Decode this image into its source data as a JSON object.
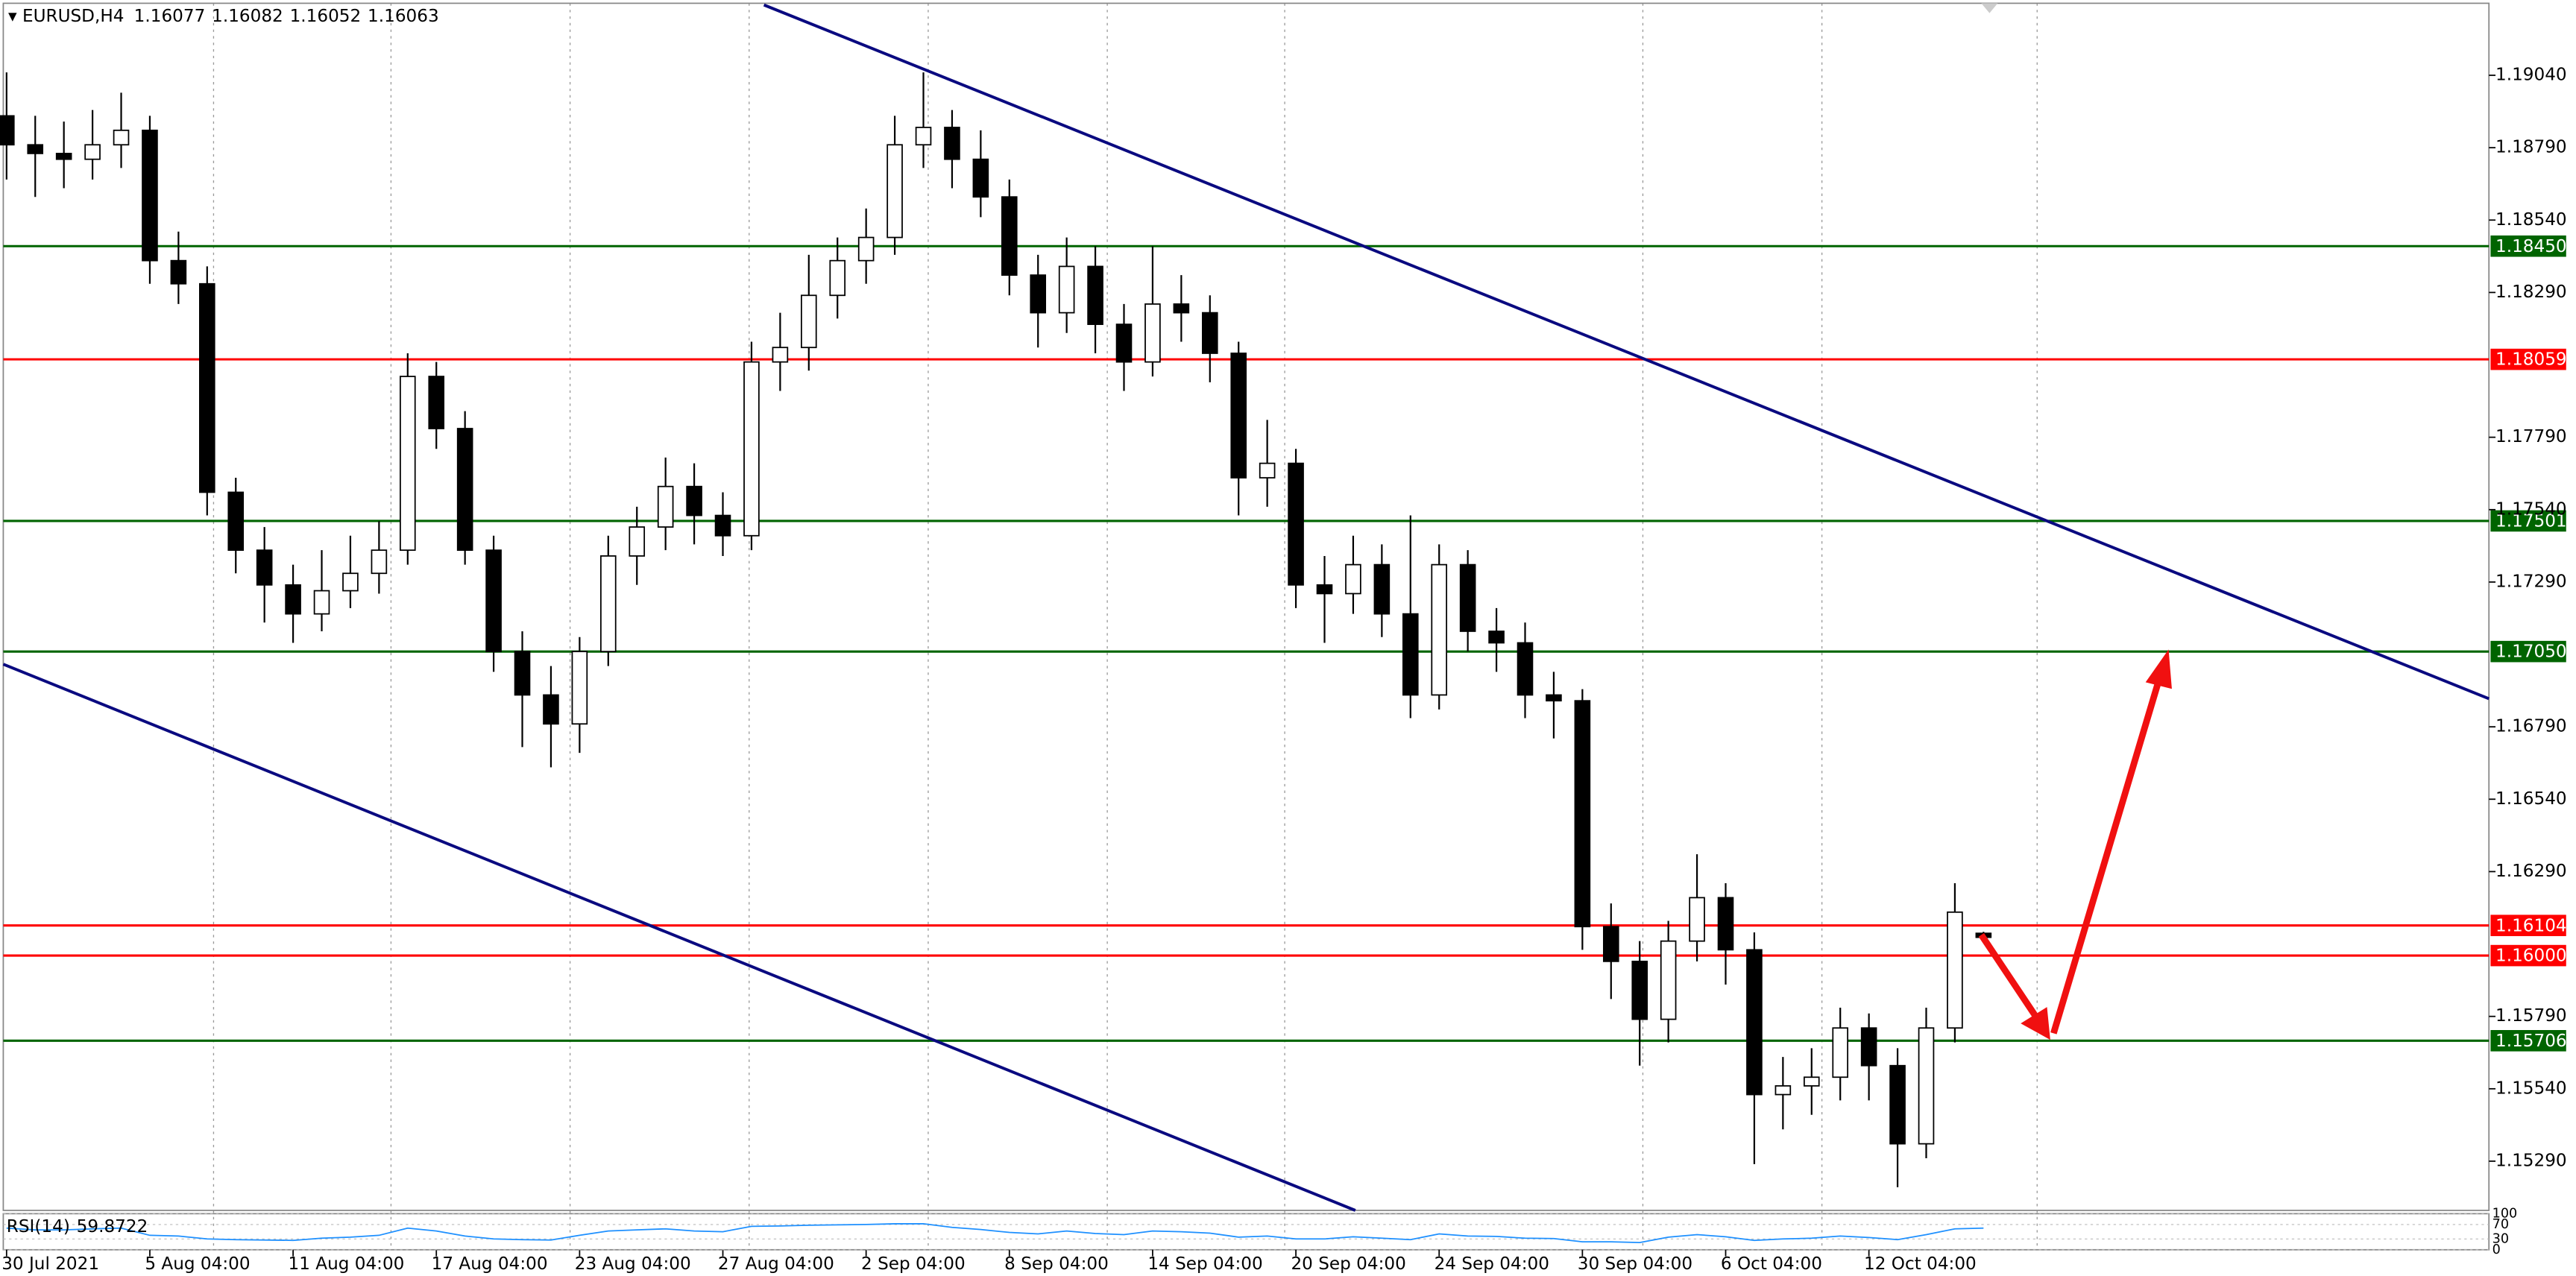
{
  "chart_data": {
    "type": "candlestick",
    "symbol": "EURUSD,H4",
    "categories": [
      "30 Jul 2021",
      null,
      null,
      null,
      null,
      "5 Aug 04:00",
      null,
      null,
      null,
      null,
      "11 Aug 04:00",
      null,
      null,
      null,
      null,
      "17 Aug 04:00",
      null,
      null,
      null,
      null,
      "23 Aug 04:00",
      null,
      null,
      null,
      null,
      "27 Aug 04:00",
      null,
      null,
      null,
      null,
      "2 Sep 04:00",
      null,
      null,
      null,
      null,
      "8 Sep 04:00",
      null,
      null,
      null,
      null,
      "14 Sep 04:00",
      null,
      null,
      null,
      null,
      "20 Sep 04:00",
      null,
      null,
      null,
      null,
      "24 Sep 04:00",
      null,
      null,
      null,
      null,
      "30 Sep 04:00",
      null,
      null,
      null,
      null,
      "6 Oct 04:00",
      null,
      null,
      null,
      null,
      "12 Oct 04:00",
      null,
      null,
      null,
      null
    ],
    "open": [
      1.189,
      1.188,
      1.1877,
      1.1875,
      1.188,
      1.1885,
      1.184,
      1.1832,
      1.176,
      1.174,
      1.1728,
      1.1718,
      1.1726,
      1.1732,
      1.174,
      1.18,
      1.1782,
      1.174,
      1.1705,
      1.169,
      1.168,
      1.1705,
      1.1738,
      1.1748,
      1.1762,
      1.1752,
      1.1745,
      1.1805,
      1.181,
      1.1828,
      1.184,
      1.1848,
      1.188,
      1.1886,
      1.1875,
      1.1862,
      1.1835,
      1.1822,
      1.1838,
      1.1818,
      1.1805,
      1.1825,
      1.1822,
      1.1808,
      1.1765,
      1.177,
      1.1728,
      1.1725,
      1.1735,
      1.1718,
      1.169,
      1.1735,
      1.1712,
      1.1708,
      1.169,
      1.1688,
      1.161,
      1.1598,
      1.1578,
      1.1605,
      1.162,
      1.1602,
      1.1552,
      1.1555,
      1.1558,
      1.1575,
      1.1562,
      1.1535,
      1.1575,
      1.16077
    ],
    "high": [
      1.1905,
      1.189,
      1.1888,
      1.1892,
      1.1898,
      1.189,
      1.185,
      1.1838,
      1.1765,
      1.1748,
      1.1735,
      1.174,
      1.1745,
      1.175,
      1.1808,
      1.1805,
      1.1788,
      1.1745,
      1.1712,
      1.17,
      1.171,
      1.1745,
      1.1755,
      1.1772,
      1.177,
      1.176,
      1.1812,
      1.1822,
      1.1842,
      1.1848,
      1.1858,
      1.189,
      1.1905,
      1.1892,
      1.1885,
      1.1868,
      1.1842,
      1.1848,
      1.1845,
      1.1825,
      1.1845,
      1.1835,
      1.1828,
      1.1812,
      1.1785,
      1.1775,
      1.1738,
      1.1745,
      1.1742,
      1.1752,
      1.1742,
      1.174,
      1.172,
      1.1715,
      1.1698,
      1.1692,
      1.1618,
      1.1605,
      1.1612,
      1.1635,
      1.1625,
      1.1608,
      1.1565,
      1.1568,
      1.1582,
      1.158,
      1.1568,
      1.1582,
      1.1625,
      1.16082
    ],
    "low": [
      1.1868,
      1.1862,
      1.1865,
      1.1868,
      1.1872,
      1.1832,
      1.1825,
      1.1752,
      1.1732,
      1.1715,
      1.1708,
      1.1712,
      1.172,
      1.1725,
      1.1735,
      1.1775,
      1.1735,
      1.1698,
      1.1672,
      1.1665,
      1.167,
      1.17,
      1.1728,
      1.174,
      1.1742,
      1.1738,
      1.174,
      1.1795,
      1.1802,
      1.182,
      1.1832,
      1.1842,
      1.1872,
      1.1865,
      1.1855,
      1.1828,
      1.181,
      1.1815,
      1.1808,
      1.1795,
      1.18,
      1.1812,
      1.1798,
      1.1752,
      1.1755,
      1.172,
      1.1708,
      1.1718,
      1.171,
      1.1682,
      1.1685,
      1.1705,
      1.1698,
      1.1682,
      1.1675,
      1.1602,
      1.1585,
      1.1562,
      1.157,
      1.1598,
      1.159,
      1.1528,
      1.154,
      1.1545,
      1.155,
      1.155,
      1.152,
      1.153,
      1.157,
      1.16052
    ],
    "close": [
      1.188,
      1.1877,
      1.1875,
      1.188,
      1.1885,
      1.184,
      1.1832,
      1.176,
      1.174,
      1.1728,
      1.1718,
      1.1726,
      1.1732,
      1.174,
      1.18,
      1.1782,
      1.174,
      1.1705,
      1.169,
      1.168,
      1.1705,
      1.1738,
      1.1748,
      1.1762,
      1.1752,
      1.1745,
      1.1805,
      1.181,
      1.1828,
      1.184,
      1.1848,
      1.188,
      1.1886,
      1.1875,
      1.1862,
      1.1835,
      1.1822,
      1.1838,
      1.1818,
      1.1805,
      1.1825,
      1.1822,
      1.1808,
      1.1765,
      1.177,
      1.1728,
      1.1725,
      1.1735,
      1.1718,
      1.169,
      1.1735,
      1.1712,
      1.1708,
      1.169,
      1.1688,
      1.161,
      1.1598,
      1.1578,
      1.1605,
      1.162,
      1.1602,
      1.1552,
      1.1555,
      1.1558,
      1.1575,
      1.1562,
      1.1535,
      1.1575,
      1.1615,
      1.16063
    ],
    "ylim": [
      1.1512,
      1.193
    ],
    "yticks": [
      {
        "value": 1.1904,
        "label": "1.19040"
      },
      {
        "value": 1.1879,
        "label": "1.18790"
      },
      {
        "value": 1.1854,
        "label": "1.18540"
      },
      {
        "value": 1.1829,
        "label": "1.18290"
      },
      {
        "value": 1.1779,
        "label": "1.17790"
      },
      {
        "value": 1.1754,
        "label": "1.17540"
      },
      {
        "value": 1.1729,
        "label": "1.17290"
      },
      {
        "value": 1.1679,
        "label": "1.16790"
      },
      {
        "value": 1.1654,
        "label": "1.16540"
      },
      {
        "value": 1.1629,
        "label": "1.16290"
      },
      {
        "value": 1.1579,
        "label": "1.15790"
      },
      {
        "value": 1.1554,
        "label": "1.15540"
      },
      {
        "value": 1.1529,
        "label": "1.15290"
      }
    ],
    "levels": [
      {
        "value": 1.1845,
        "label": "1.18450",
        "color": "#006400"
      },
      {
        "value": 1.18059,
        "label": "1.18059",
        "color": "#ff0000"
      },
      {
        "value": 1.17501,
        "label": "1.17501",
        "color": "#006400"
      },
      {
        "value": 1.1705,
        "label": "1.17050",
        "color": "#006400"
      },
      {
        "value": 1.16104,
        "label": "1.16104",
        "color": "#ff0000"
      },
      {
        "value": 1.16,
        "label": "1.16000",
        "color": "#ff0000"
      },
      {
        "value": 1.15706,
        "label": "1.15706",
        "color": "#006400"
      }
    ],
    "indicator": {
      "name": "RSI(14)",
      "color": "#1e90ff",
      "ylim": [
        0,
        100
      ],
      "yticks": [
        100,
        70,
        30,
        0
      ],
      "values": [
        60,
        55,
        55,
        58,
        60,
        40,
        38,
        30,
        28,
        27,
        26,
        32,
        35,
        40,
        60,
        52,
        38,
        30,
        28,
        27,
        40,
        52,
        55,
        58,
        52,
        50,
        65,
        66,
        68,
        69,
        70,
        72,
        72,
        62,
        56,
        48,
        44,
        52,
        45,
        42,
        52,
        50,
        46,
        35,
        38,
        30,
        30,
        36,
        32,
        28,
        44,
        38,
        37,
        32,
        31,
        22,
        22,
        20,
        35,
        42,
        36,
        26,
        30,
        32,
        38,
        34,
        28,
        42,
        58,
        59.8722
      ]
    }
  }
}
